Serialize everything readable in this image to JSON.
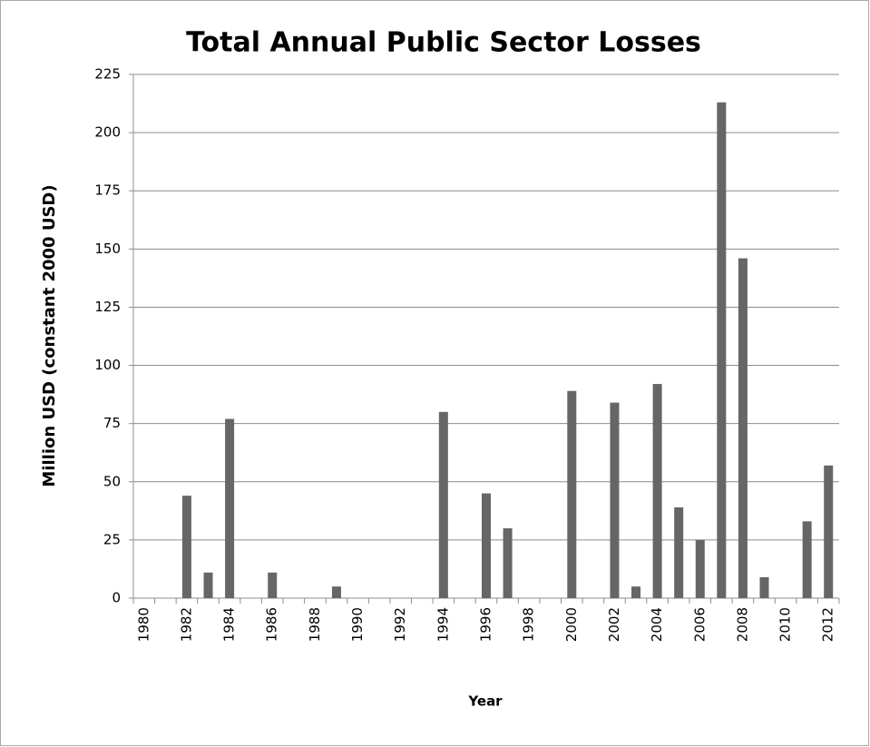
{
  "chart_data": {
    "type": "bar",
    "title": "Total Annual Public Sector Losses",
    "x_label": "Year",
    "y_label": "Million USD (constant 2000 USD)",
    "categories": [
      "1980",
      null,
      "1982",
      null,
      "1984",
      null,
      "1986",
      null,
      "1988",
      null,
      "1990",
      null,
      "1992",
      null,
      "1994",
      null,
      "1996",
      null,
      "1998",
      null,
      "2000",
      null,
      "2002",
      null,
      "2004",
      null,
      "2006",
      null,
      "2008",
      null,
      "2010",
      null,
      "2012"
    ],
    "values": [
      0,
      0,
      44,
      11,
      77,
      0,
      11,
      0,
      0,
      5,
      0,
      0,
      0,
      0,
      80,
      0,
      45,
      30,
      0,
      0,
      89,
      0,
      84,
      5,
      92,
      39,
      25,
      213,
      146,
      9,
      0,
      33,
      57
    ],
    "color": "#666666",
    "ylim": [
      0,
      225
    ],
    "yticks": [
      0,
      25,
      50,
      75,
      100,
      125,
      150,
      175,
      200,
      225
    ],
    "grid": true
  }
}
